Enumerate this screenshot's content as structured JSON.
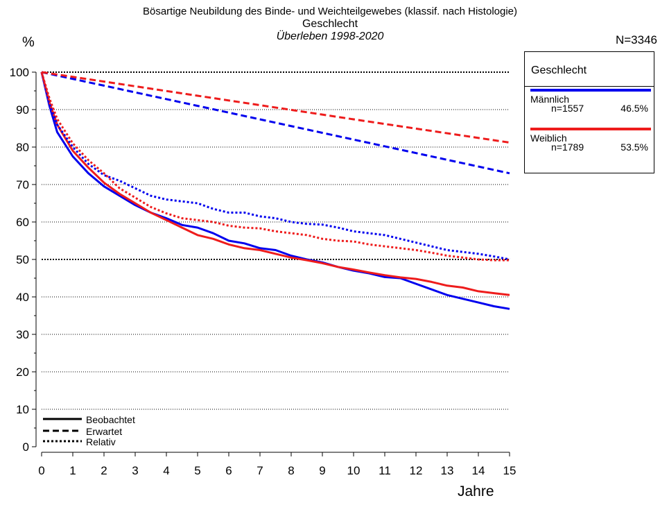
{
  "title": {
    "line1": "Bösartige Neubildung des Binde- und Weichteilgewebes (klassif. nach Histologie)",
    "line2": "Geschlecht",
    "line3": "Überleben 1998-2020",
    "n_total": "N=3346"
  },
  "legend": {
    "header": "Geschlecht",
    "groups": [
      {
        "name": "Männlich",
        "n": "n=1557",
        "pct": "46.5%",
        "color": "#0000ee"
      },
      {
        "name": "Weiblich",
        "n": "n=1789",
        "pct": "53.5%",
        "color": "#ee1c1c"
      }
    ]
  },
  "line_types": [
    "Beobachtet",
    "Erwartet",
    "Relativ"
  ],
  "chart_data": {
    "type": "line",
    "xlabel": "Jahre",
    "ylabel": "%",
    "xlim": [
      0,
      15
    ],
    "ylim": [
      0,
      100
    ],
    "xticks": [
      "0",
      "1",
      "2",
      "3",
      "4",
      "5",
      "6",
      "7",
      "8",
      "9",
      "10",
      "11",
      "12",
      "13",
      "14",
      "15"
    ],
    "yticks": [
      "0",
      "10",
      "20",
      "30",
      "40",
      "50",
      "60",
      "70",
      "80",
      "90",
      "100"
    ],
    "grid": "horizontal dotted",
    "series": [
      {
        "name": "Männlich Beobachtet",
        "color": "#0000ee",
        "style": "solid",
        "x": [
          0,
          0.25,
          0.5,
          1,
          1.5,
          2,
          2.5,
          3,
          3.5,
          4,
          4.5,
          5,
          5.5,
          6,
          6.5,
          7,
          7.5,
          8,
          8.5,
          9,
          9.5,
          10,
          10.5,
          11,
          11.5,
          12,
          12.5,
          13,
          13.5,
          14,
          14.5,
          15
        ],
        "y": [
          100,
          91,
          84,
          77.5,
          73,
          69.5,
          67,
          64.5,
          62.5,
          61,
          59.2,
          58.5,
          57,
          55,
          54.3,
          53,
          52.5,
          51,
          50,
          49.2,
          48,
          47,
          46.3,
          45.3,
          45,
          43.5,
          42,
          40.5,
          39.5,
          38.5,
          37.5,
          36.8
        ]
      },
      {
        "name": "Weiblich Beobachtet",
        "color": "#ee1c1c",
        "style": "solid",
        "x": [
          0,
          0.25,
          0.5,
          1,
          1.5,
          2,
          2.5,
          3,
          3.5,
          4,
          4.5,
          5,
          5.5,
          6,
          6.5,
          7,
          7.5,
          8,
          8.5,
          9,
          9.5,
          10,
          10.5,
          11,
          11.5,
          12,
          12.5,
          13,
          13.5,
          14,
          14.5,
          15
        ],
        "y": [
          100,
          92,
          86,
          79,
          74.5,
          70.5,
          67.5,
          65,
          62.5,
          60.5,
          58.5,
          56.5,
          55.5,
          54,
          53,
          52.5,
          51.5,
          50.5,
          49.8,
          49,
          48,
          47.3,
          46.5,
          45.8,
          45.2,
          44.8,
          44,
          43,
          42.5,
          41.5,
          41,
          40.5
        ]
      },
      {
        "name": "Männlich Erwartet",
        "color": "#0000ee",
        "style": "dashed",
        "x": [
          0,
          5,
          10,
          15
        ],
        "y": [
          100,
          91,
          82,
          73
        ]
      },
      {
        "name": "Weiblich Erwartet",
        "color": "#ee1c1c",
        "style": "dashed",
        "x": [
          0,
          5,
          10,
          15
        ],
        "y": [
          100,
          93.7,
          87.4,
          81.2
        ]
      },
      {
        "name": "Männlich Relativ",
        "color": "#0000ee",
        "style": "dotted",
        "x": [
          0,
          0.25,
          0.5,
          1,
          1.5,
          2,
          2.5,
          3,
          3.5,
          4,
          4.5,
          5,
          5.5,
          6,
          6.5,
          7,
          7.5,
          8,
          8.5,
          9,
          9.5,
          10,
          10.5,
          11,
          11.5,
          12,
          12.5,
          13,
          13.5,
          14,
          14.5,
          15
        ],
        "y": [
          100,
          92,
          86,
          80,
          75.5,
          72.5,
          71,
          69,
          67,
          66,
          65.5,
          65,
          63.5,
          62.5,
          62.5,
          61.5,
          61,
          60,
          59.5,
          59.3,
          58.5,
          57.5,
          57,
          56.5,
          55.5,
          54.5,
          53.5,
          52.5,
          52,
          51.5,
          50.8,
          50
        ]
      },
      {
        "name": "Weiblich Relativ",
        "color": "#ee1c1c",
        "style": "dotted",
        "x": [
          0,
          0.25,
          0.5,
          1,
          1.5,
          2,
          2.5,
          3,
          3.5,
          4,
          4.5,
          5,
          5.5,
          6,
          6.5,
          7,
          7.5,
          8,
          8.5,
          9,
          9.5,
          10,
          10.5,
          11,
          11.5,
          12,
          12.5,
          13,
          13.5,
          14,
          14.5,
          15
        ],
        "y": [
          100,
          93,
          87.5,
          81,
          76.5,
          73,
          69,
          66.5,
          64,
          62.3,
          61,
          60.5,
          60,
          59,
          58.5,
          58.3,
          57.5,
          57,
          56.5,
          55.5,
          55,
          54.8,
          54,
          53.5,
          53,
          52.5,
          51.8,
          51,
          50.5,
          50,
          49.8,
          49.8
        ]
      }
    ]
  }
}
